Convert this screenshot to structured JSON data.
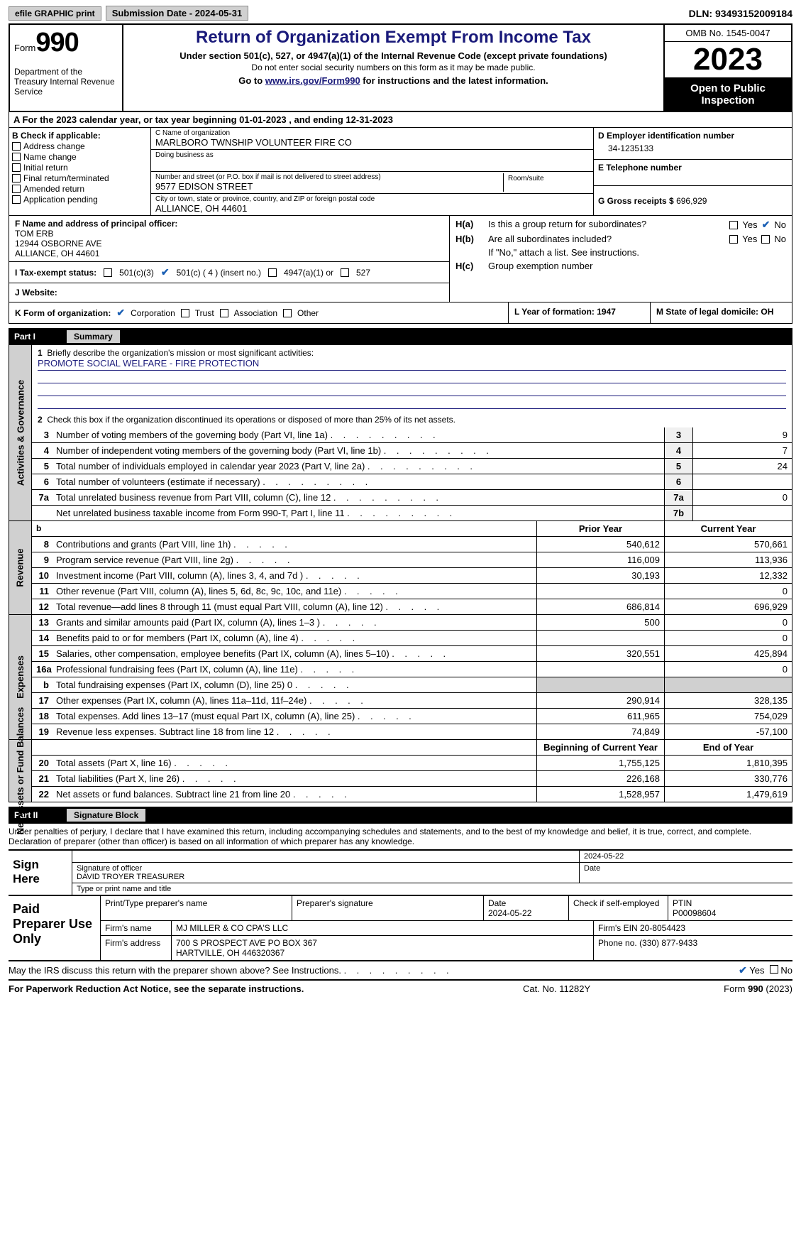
{
  "top": {
    "efile": "efile GRAPHIC print",
    "sub_date": "Submission Date - 2024-05-31",
    "dln": "DLN: 93493152009184"
  },
  "header": {
    "form": "Form",
    "num": "990",
    "dept": "Department of the Treasury Internal Revenue Service",
    "title": "Return of Organization Exempt From Income Tax",
    "sub": "Under section 501(c), 527, or 4947(a)(1) of the Internal Revenue Code (except private foundations)",
    "note": "Do not enter social security numbers on this form as it may be made public.",
    "link_pre": "Go to ",
    "link": "www.irs.gov/Form990",
    "link_post": " for instructions and the latest information.",
    "omb": "OMB No. 1545-0047",
    "year": "2023",
    "open": "Open to Public Inspection"
  },
  "a": "For the 2023 calendar year, or tax year beginning 01-01-2023    , and ending 12-31-2023",
  "b": {
    "lbl": "B Check if applicable:",
    "opts": [
      "Address change",
      "Name change",
      "Initial return",
      "Final return/terminated",
      "Amended return",
      "Application pending"
    ]
  },
  "c": {
    "name_lbl": "C Name of organization",
    "name": "MARLBORO TWNSHIP VOLUNTEER FIRE CO",
    "dba_lbl": "Doing business as",
    "street_lbl": "Number and street (or P.O. box if mail is not delivered to street address)",
    "street": "9577 EDISON STREET",
    "room_lbl": "Room/suite",
    "city_lbl": "City or town, state or province, country, and ZIP or foreign postal code",
    "city": "ALLIANCE, OH   44601"
  },
  "d": {
    "lbl": "D Employer identification number",
    "val": "34-1235133"
  },
  "e": {
    "lbl": "E Telephone number"
  },
  "g": {
    "lbl": "G Gross receipts $ ",
    "val": "696,929"
  },
  "f": {
    "lbl": "F  Name and address of principal officer:",
    "name": "TOM ERB",
    "addr1": "12944 OSBORNE AVE",
    "addr2": "ALLIANCE, OH   44601"
  },
  "i": {
    "lbl": "I    Tax-exempt status:",
    "o1": "501(c)(3)",
    "o2": "501(c) ( 4 ) (insert no.)",
    "o3": "4947(a)(1) or",
    "o4": "527"
  },
  "j": "J   Website:",
  "h": {
    "a_lbl": "H(a)",
    "a_txt": "Is this a group return for subordinates?",
    "b_lbl": "H(b)",
    "b_txt": "Are all subordinates included?",
    "note": "If \"No,\" attach a list. See instructions.",
    "c_lbl": "H(c)",
    "c_txt": "Group exemption number",
    "yes": "Yes",
    "no": "No"
  },
  "k": {
    "lbl": "K Form of organization:",
    "o1": "Corporation",
    "o2": "Trust",
    "o3": "Association",
    "o4": "Other"
  },
  "l": "L Year of formation: 1947",
  "m": "M State of legal domicile: OH",
  "part1": {
    "num": "Part I",
    "title": "Summary"
  },
  "gov": {
    "label": "Activities & Governance",
    "l1_lbl": "Briefly describe the organization's mission or most significant activities:",
    "l1_val": "PROMOTE SOCIAL WELFARE - FIRE PROTECTION",
    "l2": "Check this box       if the organization discontinued its operations or disposed of more than 25% of its net assets.",
    "lines": [
      {
        "n": "3",
        "t": "Number of voting members of the governing body (Part VI, line 1a)",
        "b": "3",
        "v": "9"
      },
      {
        "n": "4",
        "t": "Number of independent voting members of the governing body (Part VI, line 1b)",
        "b": "4",
        "v": "7"
      },
      {
        "n": "5",
        "t": "Total number of individuals employed in calendar year 2023 (Part V, line 2a)",
        "b": "5",
        "v": "24"
      },
      {
        "n": "6",
        "t": "Total number of volunteers (estimate if necessary)",
        "b": "6",
        "v": ""
      },
      {
        "n": "7a",
        "t": "Total unrelated business revenue from Part VIII, column (C), line 12",
        "b": "7a",
        "v": "0"
      },
      {
        "n": "",
        "t": "Net unrelated business taxable income from Form 990-T, Part I, line 11",
        "b": "7b",
        "v": ""
      }
    ]
  },
  "rev": {
    "label": "Revenue",
    "h_py": "Prior Year",
    "h_cy": "Current Year",
    "lines": [
      {
        "n": "8",
        "t": "Contributions and grants (Part VIII, line 1h)",
        "py": "540,612",
        "cy": "570,661"
      },
      {
        "n": "9",
        "t": "Program service revenue (Part VIII, line 2g)",
        "py": "116,009",
        "cy": "113,936"
      },
      {
        "n": "10",
        "t": "Investment income (Part VIII, column (A), lines 3, 4, and 7d )",
        "py": "30,193",
        "cy": "12,332"
      },
      {
        "n": "11",
        "t": "Other revenue (Part VIII, column (A), lines 5, 6d, 8c, 9c, 10c, and 11e)",
        "py": "",
        "cy": "0"
      },
      {
        "n": "12",
        "t": "Total revenue—add lines 8 through 11 (must equal Part VIII, column (A), line 12)",
        "py": "686,814",
        "cy": "696,929"
      }
    ]
  },
  "exp": {
    "label": "Expenses",
    "lines": [
      {
        "n": "13",
        "t": "Grants and similar amounts paid (Part IX, column (A), lines 1–3 )",
        "py": "500",
        "cy": "0"
      },
      {
        "n": "14",
        "t": "Benefits paid to or for members (Part IX, column (A), line 4)",
        "py": "",
        "cy": "0"
      },
      {
        "n": "15",
        "t": "Salaries, other compensation, employee benefits (Part IX, column (A), lines 5–10)",
        "py": "320,551",
        "cy": "425,894"
      },
      {
        "n": "16a",
        "t": "Professional fundraising fees (Part IX, column (A), line 11e)",
        "py": "",
        "cy": "0"
      },
      {
        "n": "b",
        "t": "Total fundraising expenses (Part IX, column (D), line 25) 0",
        "py": "GRAY",
        "cy": "GRAY"
      },
      {
        "n": "17",
        "t": "Other expenses (Part IX, column (A), lines 11a–11d, 11f–24e)",
        "py": "290,914",
        "cy": "328,135"
      },
      {
        "n": "18",
        "t": "Total expenses. Add lines 13–17 (must equal Part IX, column (A), line 25)",
        "py": "611,965",
        "cy": "754,029"
      },
      {
        "n": "19",
        "t": "Revenue less expenses. Subtract line 18 from line 12",
        "py": "74,849",
        "cy": "-57,100"
      }
    ]
  },
  "net": {
    "label": "Net Assets or Fund Balances",
    "h_py": "Beginning of Current Year",
    "h_cy": "End of Year",
    "lines": [
      {
        "n": "20",
        "t": "Total assets (Part X, line 16)",
        "py": "1,755,125",
        "cy": "1,810,395"
      },
      {
        "n": "21",
        "t": "Total liabilities (Part X, line 26)",
        "py": "226,168",
        "cy": "330,776"
      },
      {
        "n": "22",
        "t": "Net assets or fund balances. Subtract line 21 from line 20",
        "py": "1,528,957",
        "cy": "1,479,619"
      }
    ]
  },
  "part2": {
    "num": "Part II",
    "title": "Signature Block"
  },
  "sig": {
    "intro": "Under penalties of perjury, I declare that I have examined this return, including accompanying schedules and statements, and to the best of my knowledge and belief, it is true, correct, and complete. Declaration of preparer (other than officer) is based on all information of which preparer has any knowledge.",
    "here": "Sign Here",
    "date": "2024-05-22",
    "sig_lbl": "Signature of officer",
    "name": "DAVID TROYER  TREASURER",
    "name_lbl": "Type or print name and title",
    "date_lbl": "Date"
  },
  "prep": {
    "lbl": "Paid Preparer Use Only",
    "h1": "Print/Type preparer's name",
    "h2": "Preparer's signature",
    "h3_lbl": "Date",
    "h3": "2024-05-22",
    "h4": "Check       if self-employed",
    "h5_lbl": "PTIN",
    "h5": "P00098604",
    "firm_lbl": "Firm's name",
    "firm": "MJ MILLER & CO CPA'S LLC",
    "ein_lbl": "Firm's EIN",
    "ein": "20-8054423",
    "addr_lbl": "Firm's address",
    "addr1": "700 S PROSPECT AVE PO BOX 367",
    "addr2": "HARTVILLE, OH   446320367",
    "phone_lbl": "Phone no.",
    "phone": "(330) 877-9433"
  },
  "discuss": {
    "txt": "May the IRS discuss this return with the preparer shown above? See Instructions.",
    "yes": "Yes",
    "no": "No"
  },
  "footer": {
    "f1": "For Paperwork Reduction Act Notice, see the separate instructions.",
    "f2": "Cat. No. 11282Y",
    "f3_a": "Form ",
    "f3_b": "990",
    "f3_c": " (2023)"
  }
}
